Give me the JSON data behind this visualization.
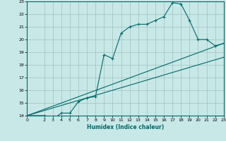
{
  "xlabel": "Humidex (Indice chaleur)",
  "bg_color": "#c8e8e8",
  "grid_color": "#a0c0c0",
  "line_color": "#006868",
  "xlim": [
    0,
    23
  ],
  "ylim": [
    14,
    23
  ],
  "yticks": [
    14,
    15,
    16,
    17,
    18,
    19,
    20,
    21,
    22,
    23
  ],
  "xticks": [
    0,
    2,
    3,
    4,
    5,
    6,
    7,
    8,
    9,
    10,
    11,
    12,
    13,
    14,
    15,
    16,
    17,
    18,
    19,
    20,
    21,
    22,
    23
  ],
  "curve1_x": [
    0,
    2,
    3,
    4,
    5,
    6,
    7,
    8,
    9,
    10,
    11,
    12,
    13,
    14,
    15,
    16,
    17,
    18,
    19,
    20,
    21,
    22,
    23
  ],
  "curve1_y": [
    14.0,
    14.0,
    13.7,
    14.2,
    14.2,
    15.1,
    15.4,
    15.5,
    18.8,
    18.5,
    20.5,
    21.0,
    21.2,
    21.2,
    21.5,
    21.8,
    22.9,
    22.8,
    21.5,
    20.0,
    20.0,
    19.5,
    19.7
  ],
  "curve2_x": [
    0,
    23
  ],
  "curve2_y": [
    14.0,
    19.7
  ],
  "curve3_x": [
    0,
    23
  ],
  "curve3_y": [
    14.0,
    18.6
  ]
}
